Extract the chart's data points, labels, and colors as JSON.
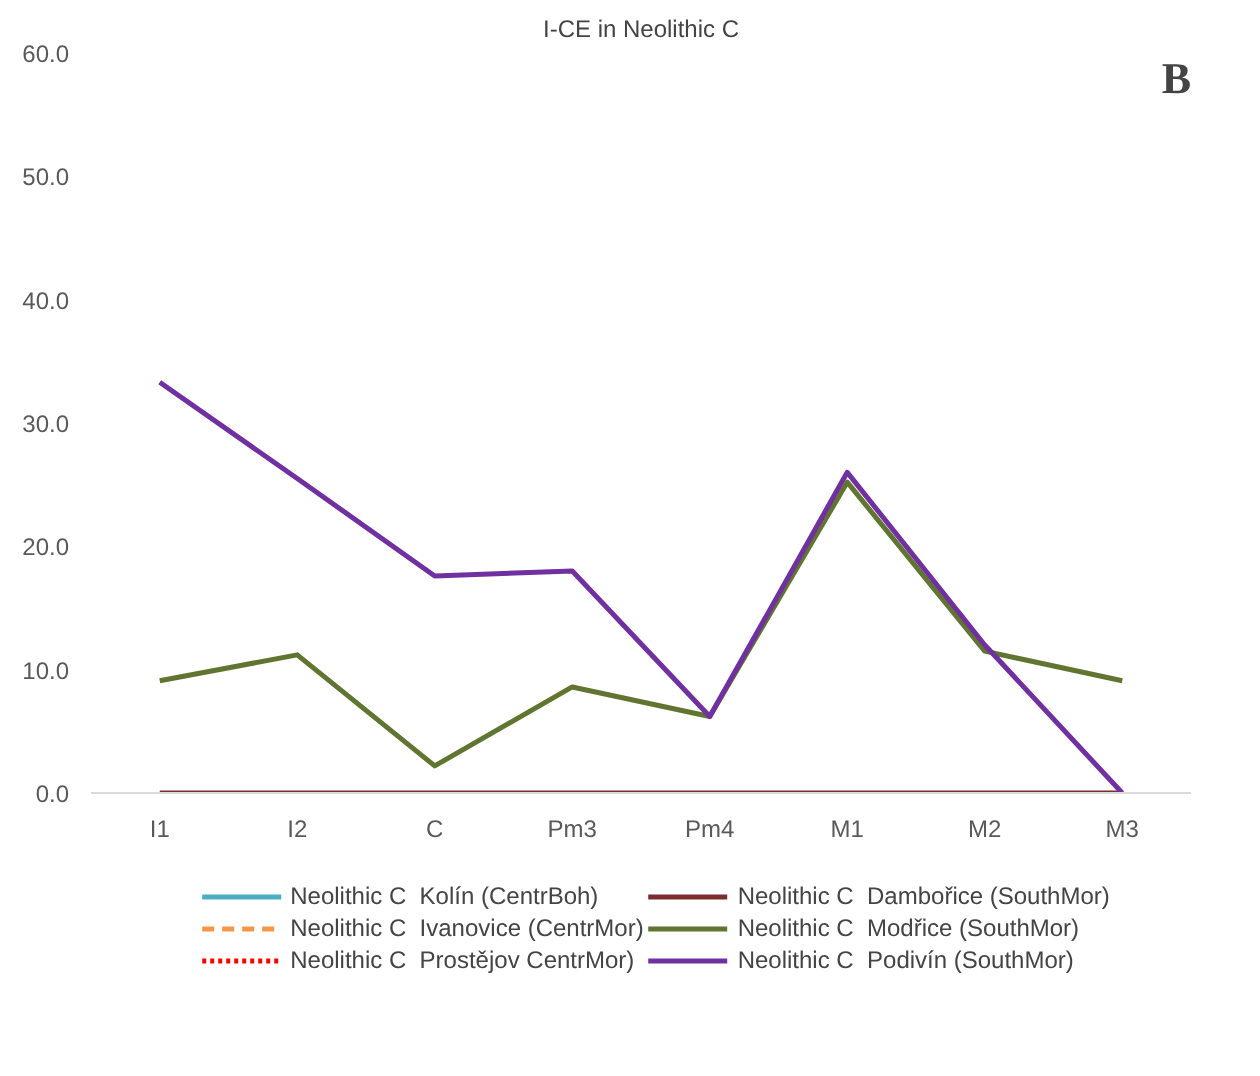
{
  "chart_data": {
    "type": "line",
    "title": "I-CE in Neolithic C",
    "annotations": [
      "B"
    ],
    "categories": [
      "I1",
      "I2",
      "C",
      "Pm3",
      "Pm4",
      "M1",
      "M2",
      "M3"
    ],
    "ylim": [
      0,
      60
    ],
    "yticks": [
      {
        "value": 0,
        "label": "0.0"
      },
      {
        "value": 10,
        "label": "10.0"
      },
      {
        "value": 20,
        "label": "20.0"
      },
      {
        "value": 30,
        "label": "30.0"
      },
      {
        "value": 40,
        "label": "40.0"
      },
      {
        "value": 50,
        "label": "50.0"
      },
      {
        "value": 60,
        "label": "60.0"
      }
    ],
    "grid": false,
    "legend": "bottom",
    "marker": "none",
    "series": [
      {
        "name": "Neolithic C  Kolín (CentrBoh)",
        "color": "#4bacc6",
        "line_style": "solid",
        "values": [
          null,
          null,
          null,
          null,
          null,
          null,
          null,
          null
        ]
      },
      {
        "name": "Neolithic C  Ivanovice (CentrMor)",
        "color": "#f79646",
        "line_style": "dashed",
        "values": [
          null,
          null,
          null,
          null,
          null,
          null,
          null,
          null
        ]
      },
      {
        "name": "Neolithic C  Prostějov CentrMor)",
        "color": "#ff0000",
        "line_style": "dotted",
        "values": [
          null,
          null,
          null,
          null,
          null,
          null,
          null,
          null
        ]
      },
      {
        "name": "Neolithic C  Dambořice (SouthMor)",
        "color": "#7b2c2c",
        "line_style": "solid",
        "values": [
          0,
          0,
          0,
          0,
          0,
          0,
          0,
          0
        ]
      },
      {
        "name": "Neolithic C  Modřice (SouthMor)",
        "color": "#5f7530",
        "line_style": "solid",
        "values": [
          9.1,
          11.2,
          2.2,
          8.6,
          6.2,
          25.2,
          11.5,
          9.1
        ]
      },
      {
        "name": "Neolithic C  Podivín (SouthMor)",
        "color": "#7030a0",
        "line_style": "solid",
        "values": [
          33.3,
          25.5,
          17.6,
          18.0,
          6.2,
          26.0,
          12.0,
          0
        ]
      }
    ]
  }
}
